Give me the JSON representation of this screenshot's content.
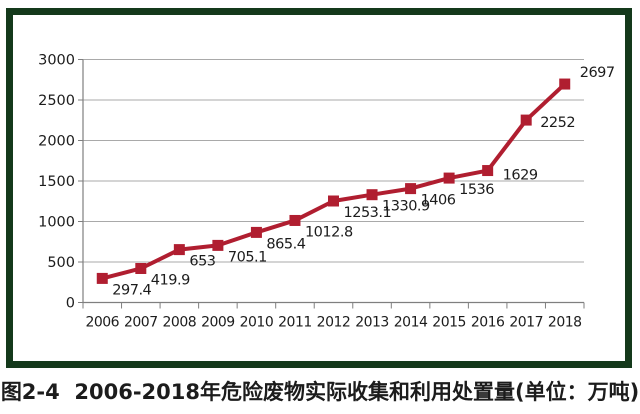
{
  "figure": {
    "caption": "图2-4  2006-2018年危险废物实际收集和利用处置量(单位：万吨)"
  },
  "colors": {
    "line": "#b01e30",
    "marker": "#b01e30",
    "frame_border": "#14391b",
    "grid": "#a9a9a9",
    "axis": "#7f7f7f",
    "label_text": "#1c1c1c",
    "background": "#ffffff"
  },
  "chart_data": {
    "type": "line",
    "title": "",
    "xlabel": "",
    "ylabel": "",
    "categories": [
      "2006",
      "2007",
      "2008",
      "2009",
      "2010",
      "2011",
      "2012",
      "2013",
      "2014",
      "2015",
      "2016",
      "2017",
      "2018"
    ],
    "values": [
      297.4,
      419.9,
      653,
      705.1,
      865.4,
      1012.8,
      1253.1,
      1330.9,
      1406,
      1536,
      1629,
      2252,
      2697
    ],
    "point_labels": [
      "297.4",
      "419.9",
      "653",
      "705.1",
      "865.4",
      "1012.8",
      "1253.1",
      "1330.9",
      "1406",
      "1536",
      "1629",
      "2252",
      "2697"
    ],
    "ylim": [
      0,
      3000
    ],
    "yticks": [
      0,
      500,
      1000,
      1500,
      2000,
      2500,
      3000
    ],
    "ytick_labels": [
      "0",
      "500",
      "1000",
      "1500",
      "2000",
      "2500",
      "3000"
    ],
    "grid": true,
    "legend": false,
    "marker_shape": "square"
  }
}
